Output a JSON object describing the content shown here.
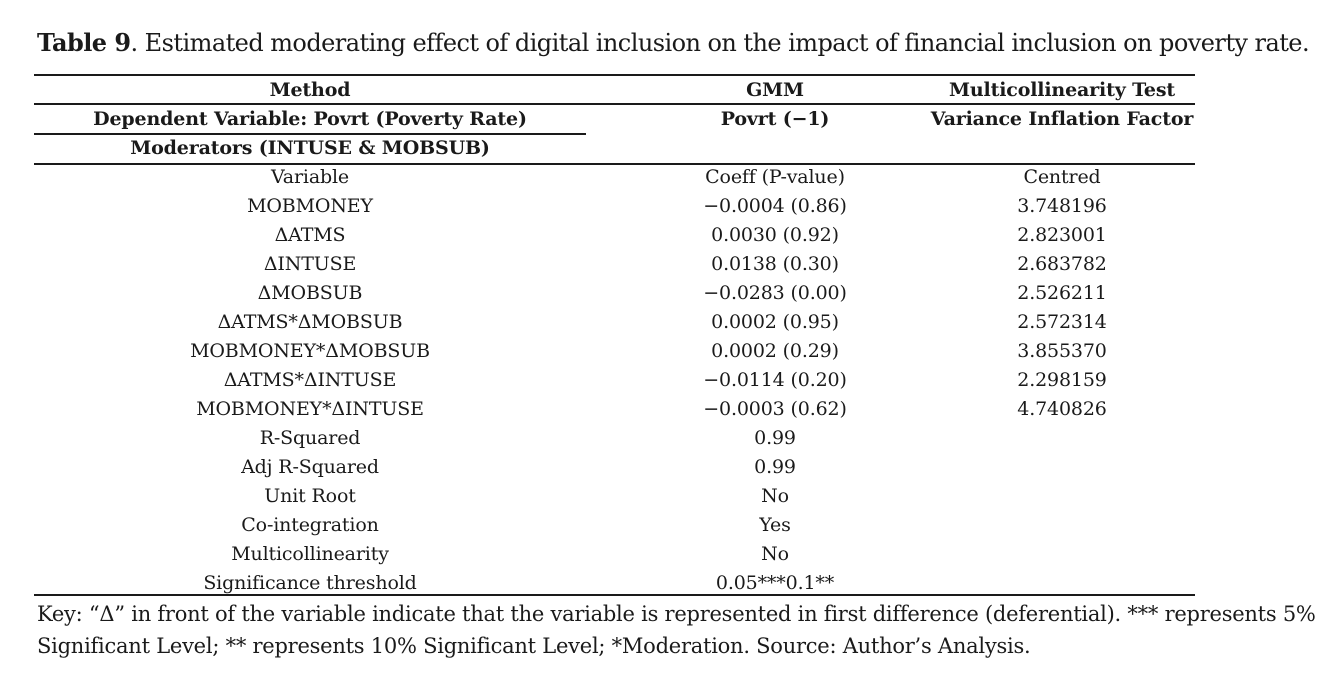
{
  "caption": {
    "label": "Table 9",
    "text": ". Estimated moderating effect of digital inclusion on the impact of financial inclusion on poverty rate."
  },
  "header": {
    "method": "Method",
    "gmm": "GMM",
    "multicollinearity_test": "Multicollinearity Test",
    "dependent_variable": "Dependent Variable: Povrt (Poverty Rate)",
    "lag": "Povrt (−1)",
    "vif": "Variance Inflation Factor",
    "moderators": "Moderators (INTUSE & MOBSUB)"
  },
  "columns": {
    "variable": "Variable",
    "coeff": "Coeff (P-value)",
    "centred": "Centred"
  },
  "rows": [
    {
      "variable": "MOBMONEY",
      "coeff": "−0.0004 (0.86)",
      "vif": "3.748196"
    },
    {
      "variable": "ΔATMS",
      "coeff": "0.0030 (0.92)",
      "vif": "2.823001"
    },
    {
      "variable": "ΔINTUSE",
      "coeff": "0.0138 (0.30)",
      "vif": "2.683782"
    },
    {
      "variable": "ΔMOBSUB",
      "coeff": "−0.0283 (0.00)",
      "vif": "2.526211"
    },
    {
      "variable": "ΔATMS*ΔMOBSUB",
      "coeff": "0.0002 (0.95)",
      "vif": "2.572314"
    },
    {
      "variable": "MOBMONEY*ΔMOBSUB",
      "coeff": "0.0002 (0.29)",
      "vif": "3.855370"
    },
    {
      "variable": "ΔATMS*ΔINTUSE",
      "coeff": "−0.0114 (0.20)",
      "vif": "2.298159"
    },
    {
      "variable": "MOBMONEY*ΔINTUSE",
      "coeff": "−0.0003 (0.62)",
      "vif": "4.740826"
    },
    {
      "variable": "R-Squared",
      "coeff": "0.99",
      "vif": ""
    },
    {
      "variable": "Adj R-Squared",
      "coeff": "0.99",
      "vif": ""
    },
    {
      "variable": "Unit Root",
      "coeff": "No",
      "vif": ""
    },
    {
      "variable": "Co-integration",
      "coeff": "Yes",
      "vif": ""
    },
    {
      "variable": "Multicollinearity",
      "coeff": "No",
      "vif": ""
    },
    {
      "variable": "Significance threshold",
      "coeff": "0.05***0.1**",
      "vif": ""
    }
  ],
  "key": "Key: “Δ” in front of the variable indicate that the variable is represented in first difference (deferential). *** represents 5% Significant Level; ** represents 10% Significant Level; *Moderation. Source: Author’s Analysis."
}
